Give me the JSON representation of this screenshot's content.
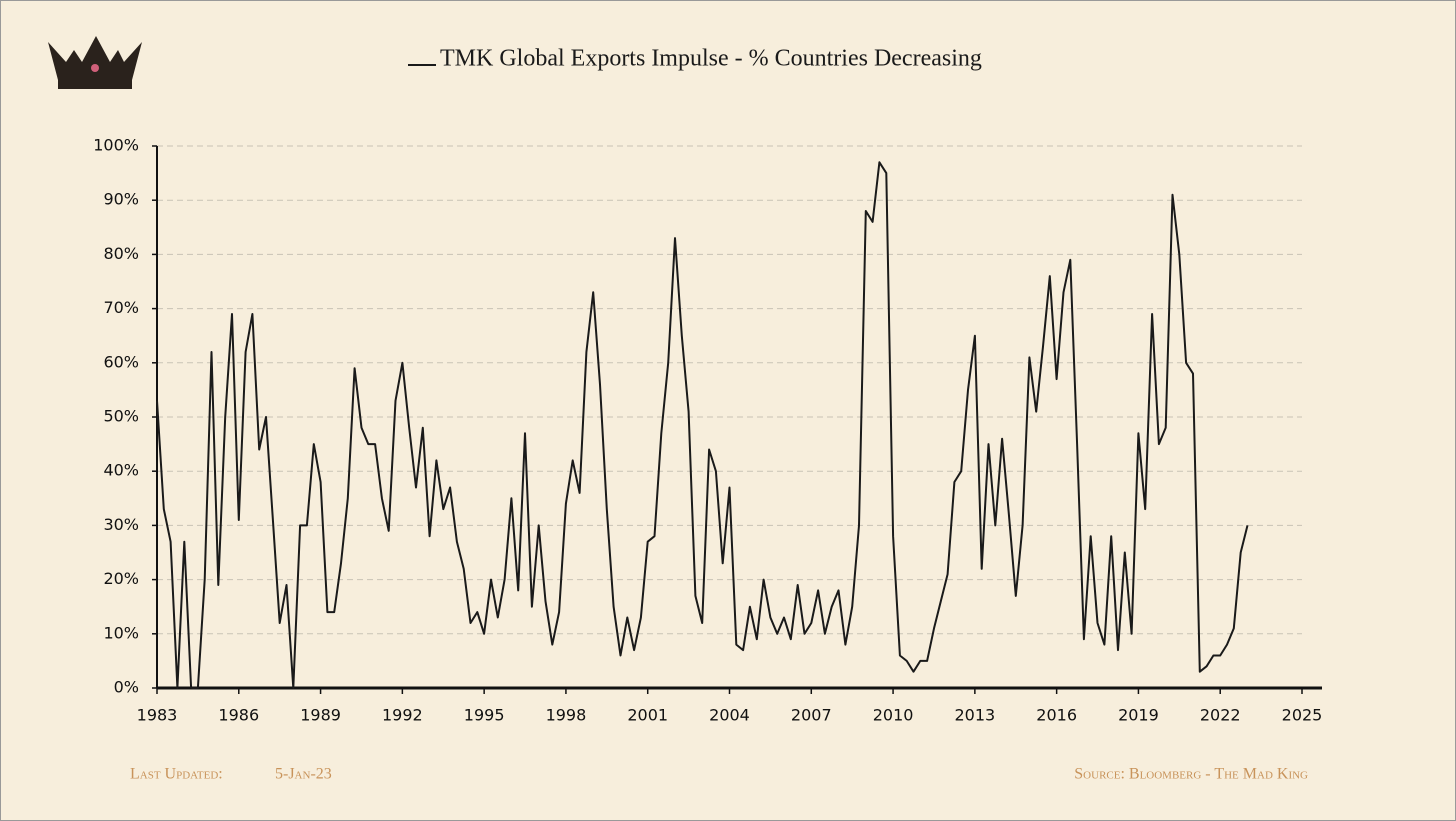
{
  "chart_data": {
    "type": "line",
    "series": [
      {
        "name": "TMK Global Exports Impulse - % Countries Decreasing",
        "color": "#1a1a1a",
        "values": [
          53,
          33,
          27,
          0,
          27,
          0,
          0,
          20,
          62,
          19,
          50,
          69,
          31,
          62,
          69,
          44,
          50,
          31,
          12,
          19,
          0,
          30,
          30,
          45,
          38,
          14,
          14,
          23,
          35,
          59,
          48,
          45,
          45,
          35,
          29,
          53,
          60,
          48,
          37,
          48,
          28,
          42,
          33,
          37,
          27,
          22,
          12,
          14,
          10,
          20,
          13,
          20,
          35,
          18,
          47,
          15,
          30,
          16,
          8,
          14,
          34,
          42,
          36,
          62,
          73,
          56,
          33,
          15,
          6,
          13,
          7,
          13,
          27,
          28,
          47,
          60,
          83,
          65,
          51,
          17,
          12,
          44,
          40,
          23,
          37,
          8,
          7,
          15,
          9,
          20,
          13,
          10,
          13,
          9,
          19,
          10,
          12,
          18,
          10,
          15,
          18,
          8,
          15,
          30,
          88,
          86,
          97,
          95,
          28,
          6,
          5,
          3,
          5,
          5,
          11,
          16,
          21,
          38,
          40,
          55,
          65,
          22,
          45,
          30,
          46,
          32,
          17,
          30,
          61,
          51,
          63,
          76,
          57,
          73,
          79,
          45,
          9,
          28,
          12,
          8,
          28,
          7,
          25,
          10,
          47,
          33,
          69,
          45,
          48,
          91,
          80,
          60,
          58,
          3,
          4,
          6,
          6,
          8,
          11,
          25,
          30
        ]
      }
    ],
    "x": [
      1983,
      1983.25,
      1983.5,
      1983.75,
      1984,
      1984.25,
      1984.5,
      1984.75,
      1985,
      1985.25,
      1985.5,
      1985.75,
      1986,
      1986.25,
      1986.5,
      1986.75,
      1987,
      1987.25,
      1987.5,
      1987.75,
      1988,
      1988.25,
      1988.5,
      1988.75,
      1989,
      1989.25,
      1989.5,
      1989.75,
      1990,
      1990.25,
      1990.5,
      1990.75,
      1991,
      1991.25,
      1991.5,
      1991.75,
      1992,
      1992.25,
      1992.5,
      1992.75,
      1993,
      1993.25,
      1993.5,
      1993.75,
      1994,
      1994.25,
      1994.5,
      1994.75,
      1995,
      1995.25,
      1995.5,
      1995.75,
      1996,
      1996.25,
      1996.5,
      1996.75,
      1997,
      1997.25,
      1997.5,
      1997.75,
      1998,
      1998.25,
      1998.5,
      1998.75,
      1999,
      1999.25,
      1999.5,
      1999.75,
      2000,
      2000.25,
      2000.5,
      2000.75,
      2001,
      2001.25,
      2001.5,
      2001.75,
      2002,
      2002.25,
      2002.5,
      2002.75,
      2003,
      2003.25,
      2003.5,
      2003.75,
      2004,
      2004.25,
      2004.5,
      2004.75,
      2005,
      2005.25,
      2005.5,
      2005.75,
      2006,
      2006.25,
      2006.5,
      2006.75,
      2007,
      2007.25,
      2007.5,
      2007.75,
      2008,
      2008.25,
      2008.5,
      2008.75,
      2009,
      2009.25,
      2009.5,
      2009.75,
      2010,
      2010.25,
      2010.5,
      2010.75,
      2011,
      2011.25,
      2011.5,
      2011.75,
      2012,
      2012.25,
      2012.5,
      2012.75,
      2013,
      2013.25,
      2013.5,
      2013.75,
      2014,
      2014.25,
      2014.5,
      2014.75,
      2015,
      2015.25,
      2015.5,
      2015.75,
      2016,
      2016.25,
      2016.5,
      2016.75,
      2017,
      2017.25,
      2017.5,
      2017.75,
      2018,
      2018.25,
      2018.5,
      2018.75,
      2019,
      2019.25,
      2019.5,
      2019.75,
      2020,
      2020.25,
      2020.5,
      2020.75,
      2021,
      2021.25,
      2021.5,
      2021.75,
      2022,
      2022.25,
      2022.5,
      2022.75,
      2023
    ],
    "xlim": [
      1983,
      2025
    ],
    "xticks": [
      1983,
      1986,
      1989,
      1992,
      1995,
      1998,
      2001,
      2004,
      2007,
      2010,
      2013,
      2016,
      2019,
      2022,
      2025
    ],
    "ylim": [
      0,
      100
    ],
    "yticks": [
      {
        "value": 0,
        "label": "0%"
      },
      {
        "value": 10,
        "label": "10%"
      },
      {
        "value": 20,
        "label": "20%"
      },
      {
        "value": 30,
        "label": "30%"
      },
      {
        "value": 40,
        "label": "40%"
      },
      {
        "value": 50,
        "label": "50%"
      },
      {
        "value": 60,
        "label": "60%"
      },
      {
        "value": 70,
        "label": "70%"
      },
      {
        "value": 80,
        "label": "80%"
      },
      {
        "value": 90,
        "label": "90%"
      },
      {
        "value": 100,
        "label": "100%"
      }
    ],
    "grid": true
  },
  "footer": {
    "updated_label": "Last Updated:",
    "updated_date": "5-Jan-23",
    "source": "Source: Bloomberg - The Mad King"
  }
}
